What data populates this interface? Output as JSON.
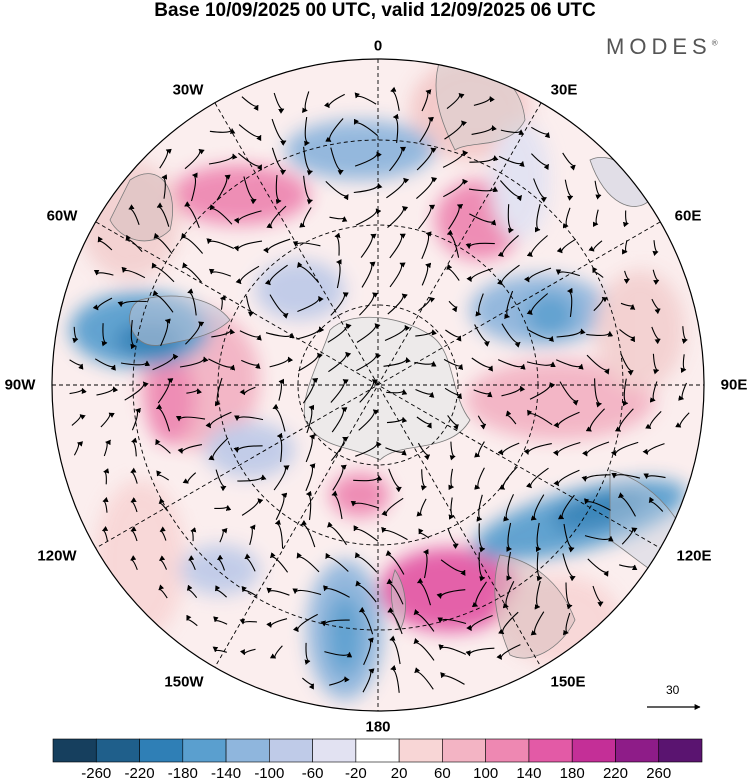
{
  "title": "Base 10/09/2025 00 UTC, valid 12/09/2025 06 UTC",
  "brand": "MODES",
  "brand_mark": "®",
  "longitude_labels": {
    "lon_0": "0",
    "lon_30e": "30E",
    "lon_60e": "60E",
    "lon_90e": "90E",
    "lon_120e": "120E",
    "lon_150e": "150E",
    "lon_180": "180",
    "lon_150w": "150W",
    "lon_120w": "120W",
    "lon_90w": "90W",
    "lon_60w": "60W",
    "lon_30w": "30W"
  },
  "vector_reference": "30",
  "colorbar": {
    "labels": [
      "-260",
      "-220",
      "-180",
      "-140",
      "-100",
      "-60",
      "-20",
      "20",
      "60",
      "100",
      "140",
      "180",
      "220",
      "260"
    ],
    "colors": [
      "#163f5e",
      "#1f5f8b",
      "#2f7fb6",
      "#5a9fcf",
      "#8fb6dd",
      "#bfcbe8",
      "#e2e2f2",
      "#ffffff",
      "#f8d6d6",
      "#f3b4c4",
      "#ee88b2",
      "#e35aa6",
      "#c42f97",
      "#8e1c88",
      "#5a1470"
    ]
  }
}
